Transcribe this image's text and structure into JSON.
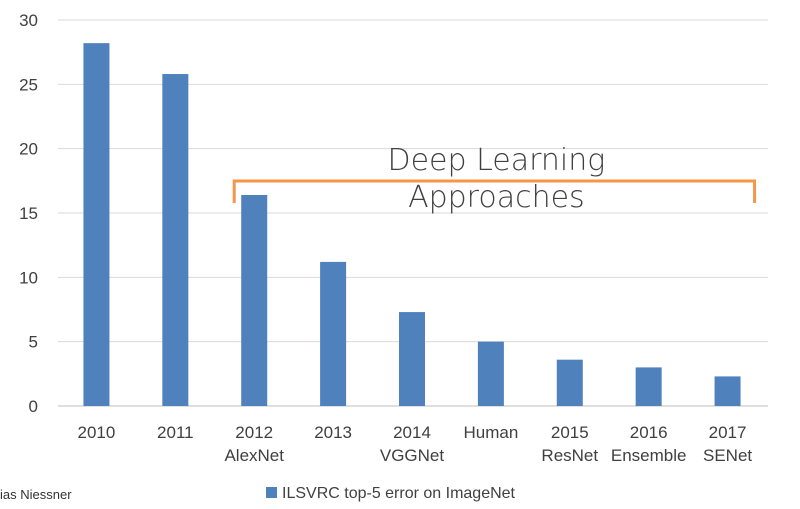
{
  "chart_data": {
    "type": "bar",
    "categories": [
      [
        "2010"
      ],
      [
        "2011"
      ],
      [
        "2012",
        "AlexNet"
      ],
      [
        "2013"
      ],
      [
        "2014",
        "VGGNet"
      ],
      [
        "Human"
      ],
      [
        "2015",
        "ResNet"
      ],
      [
        "2016",
        "Ensemble"
      ],
      [
        "2017",
        "SENet"
      ]
    ],
    "series": [
      {
        "name": "ILSVRC top-5 error on ImageNet",
        "values": [
          28.2,
          25.8,
          16.4,
          11.2,
          7.3,
          5.0,
          3.6,
          3.0,
          2.3
        ]
      }
    ],
    "ylim": [
      0,
      30
    ],
    "yticks": [
      0,
      5,
      10,
      15,
      20,
      25,
      30
    ],
    "grid": true,
    "legend_position": "bottom",
    "annotation": {
      "lines": [
        "Deep Learning",
        "Approaches"
      ],
      "span": [
        "2012",
        "2017"
      ]
    },
    "colors": {
      "bar": "#4f81bd",
      "bracket": "#f79646",
      "grid": "#d9d9d9",
      "axis": "#bfbfbf"
    }
  },
  "credit": "ias Niessner"
}
